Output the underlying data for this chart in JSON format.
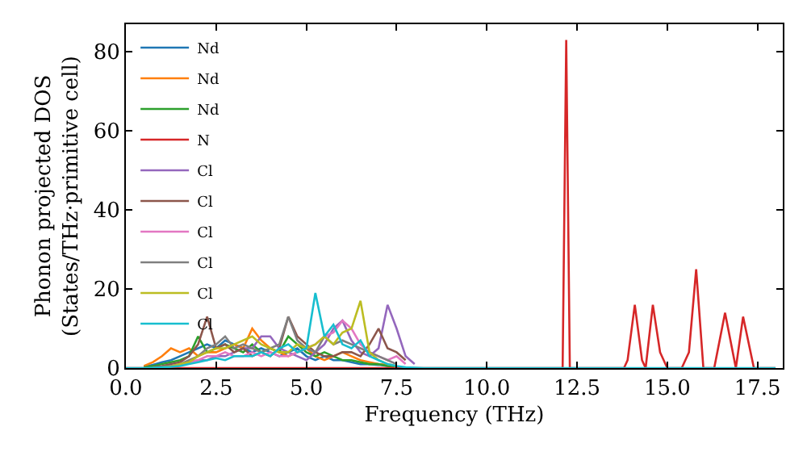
{
  "chart_data": {
    "type": "line",
    "xlabel": "Frequency (THz)",
    "ylabel": "Phonon projected DOS\n(States/THz·primitive cell)",
    "xlim": [
      0,
      18.2
    ],
    "ylim": [
      0,
      87
    ],
    "xticks": [
      {
        "value": 0,
        "label": "0.0"
      },
      2.5,
      {
        "value": 5,
        "label": "5.0"
      },
      7.5,
      {
        "value": 10,
        "label": "10.0"
      },
      12.5,
      {
        "value": 15,
        "label": "15.0"
      },
      17.5
    ],
    "yticks": [
      0,
      20,
      40,
      60,
      80
    ],
    "legend": "top left",
    "marker": "none",
    "line_style": "solid",
    "x": [
      0,
      0.25,
      0.5,
      0.75,
      1,
      1.25,
      1.5,
      1.75,
      2,
      2.25,
      2.5,
      2.75,
      3,
      3.25,
      3.5,
      3.75,
      4,
      4.25,
      4.5,
      4.75,
      5,
      5.25,
      5.5,
      5.75,
      6,
      6.25,
      6.5,
      6.75,
      7,
      7.25,
      7.5,
      7.75,
      8,
      8.25,
      8.5,
      18
    ],
    "series": [
      {
        "name": "Nd",
        "color": "#1f77b4",
        "values": [
          null,
          null,
          0.3,
          0.8,
          1.5,
          2,
          3,
          4,
          5,
          6,
          5,
          7,
          6,
          5,
          4,
          5,
          4,
          3,
          4,
          5,
          3,
          2,
          3,
          2,
          2,
          1.5,
          1,
          1,
          0.8,
          0.5,
          0.3,
          null,
          null,
          null,
          null,
          null
        ]
      },
      {
        "name": "Nd",
        "color": "#ff7f0e",
        "values": [
          null,
          null,
          0.5,
          1.5,
          3,
          5,
          4,
          5,
          3,
          4,
          4,
          5,
          6,
          5,
          10,
          7,
          5,
          4,
          3,
          4,
          5,
          3,
          2,
          3,
          4,
          3,
          2,
          1.5,
          1,
          0.8,
          null,
          null,
          null,
          null,
          null,
          null
        ]
      },
      {
        "name": "Nd",
        "color": "#2ca02c",
        "values": [
          null,
          null,
          0.2,
          0.5,
          1,
          1.5,
          2,
          3,
          8,
          4,
          5,
          6,
          5,
          4,
          6,
          4,
          5,
          4,
          8,
          6,
          4,
          3,
          4,
          3,
          2,
          2,
          1.5,
          1,
          1,
          0.5,
          0.3,
          null,
          null,
          null,
          null,
          null
        ]
      },
      {
        "name": "N",
        "color": "#d62728",
        "x": [
          0,
          12,
          12.1,
          12.2,
          12.3,
          12.4,
          13.8,
          13.9,
          14.1,
          14.3,
          14.4,
          14.6,
          14.8,
          15.0,
          15.4,
          15.6,
          15.8,
          16.0,
          16.3,
          16.6,
          16.9,
          17.1,
          17.4,
          18
        ],
        "values": [
          0,
          0,
          0,
          83,
          0,
          0,
          0,
          2,
          16,
          2,
          0,
          16,
          4,
          0,
          0,
          4,
          25,
          0,
          0,
          14,
          0,
          13,
          0,
          0
        ]
      },
      {
        "name": "Cl",
        "color": "#9467bd",
        "values": [
          null,
          null,
          null,
          0.1,
          0.3,
          0.5,
          1,
          1.5,
          2,
          2,
          3,
          3,
          4,
          5,
          5,
          8,
          8,
          5,
          4,
          3,
          2,
          4,
          6,
          10,
          12,
          7,
          4,
          3,
          5,
          16,
          10,
          3,
          1,
          null,
          null,
          null
        ]
      },
      {
        "name": "Cl",
        "color": "#8c564b",
        "values": [
          null,
          null,
          null,
          0.2,
          0.5,
          1,
          1.5,
          3,
          6,
          13,
          5,
          6,
          4,
          5,
          3,
          4,
          3,
          5,
          13,
          8,
          6,
          4,
          3,
          3,
          4,
          4,
          3,
          6,
          10,
          5,
          4,
          2,
          null,
          null,
          null,
          null
        ]
      },
      {
        "name": "Cl",
        "color": "#e377c2",
        "values": [
          null,
          null,
          null,
          null,
          null,
          0.5,
          1,
          1.5,
          2,
          3,
          3,
          4,
          3,
          3,
          4,
          3,
          4,
          3,
          3,
          4,
          5,
          6,
          8,
          9,
          12,
          10,
          6,
          4,
          3,
          2,
          3,
          1,
          null,
          null,
          null,
          null
        ]
      },
      {
        "name": "Cl",
        "color": "#7f7f7f",
        "values": [
          null,
          null,
          null,
          0.1,
          0.3,
          0.5,
          1,
          2,
          3,
          5,
          6,
          8,
          5,
          6,
          5,
          4,
          5,
          6,
          13,
          7,
          5,
          4,
          8,
          6,
          7,
          6,
          5,
          4,
          3,
          2,
          1,
          null,
          null,
          null,
          null,
          null
        ]
      },
      {
        "name": "Cl",
        "color": "#bcbd22",
        "values": [
          null,
          null,
          null,
          0.1,
          0.2,
          0.4,
          1,
          1.5,
          3,
          4,
          5,
          5,
          6,
          7,
          8,
          6,
          5,
          4,
          4,
          6,
          5,
          6,
          8,
          6,
          9,
          10,
          17,
          4,
          2,
          1,
          0.5,
          null,
          null,
          null,
          null,
          null
        ]
      },
      {
        "name": "Cl",
        "color": "#17becf",
        "values": [
          0,
          0,
          0,
          0.1,
          0.2,
          0.3,
          0.5,
          1,
          1.5,
          2,
          2.5,
          2,
          3,
          3,
          3,
          4,
          3,
          5,
          6,
          4,
          5,
          19,
          8,
          11,
          6,
          5,
          7,
          3,
          2,
          1,
          0.5,
          0.2,
          0.1,
          0,
          0,
          0
        ]
      }
    ]
  }
}
